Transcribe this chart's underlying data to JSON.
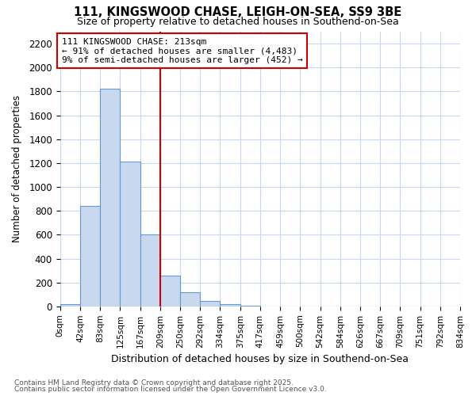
{
  "title1": "111, KINGSWOOD CHASE, LEIGH-ON-SEA, SS9 3BE",
  "title2": "Size of property relative to detached houses in Southend-on-Sea",
  "xlabel": "Distribution of detached houses by size in Southend-on-Sea",
  "ylabel": "Number of detached properties",
  "bar_values": [
    20,
    840,
    1820,
    1210,
    600,
    255,
    120,
    45,
    20,
    5,
    0,
    0,
    0,
    0,
    0,
    0,
    0,
    0,
    0,
    0
  ],
  "bin_labels": [
    "0sqm",
    "42sqm",
    "83sqm",
    "125sqm",
    "167sqm",
    "209sqm",
    "250sqm",
    "292sqm",
    "334sqm",
    "375sqm",
    "417sqm",
    "459sqm",
    "500sqm",
    "542sqm",
    "584sqm",
    "626sqm",
    "667sqm",
    "709sqm",
    "751sqm",
    "792sqm",
    "834sqm"
  ],
  "property_label": "111 KINGSWOOD CHASE: 213sqm",
  "annotation_line1": "← 91% of detached houses are smaller (4,483)",
  "annotation_line2": "9% of semi-detached houses are larger (452) →",
  "bar_color": "#c8d8ee",
  "bar_edge_color": "#6699cc",
  "vline_color": "#cc0000",
  "annotation_box_edge": "#cc0000",
  "background_color": "#ffffff",
  "grid_color": "#c8d8f0",
  "ylim": [
    0,
    2300
  ],
  "yticks": [
    0,
    200,
    400,
    600,
    800,
    1000,
    1200,
    1400,
    1600,
    1800,
    2000,
    2200
  ],
  "vline_bin": 5,
  "footnote1": "Contains HM Land Registry data © Crown copyright and database right 2025.",
  "footnote2": "Contains public sector information licensed under the Open Government Licence v3.0."
}
